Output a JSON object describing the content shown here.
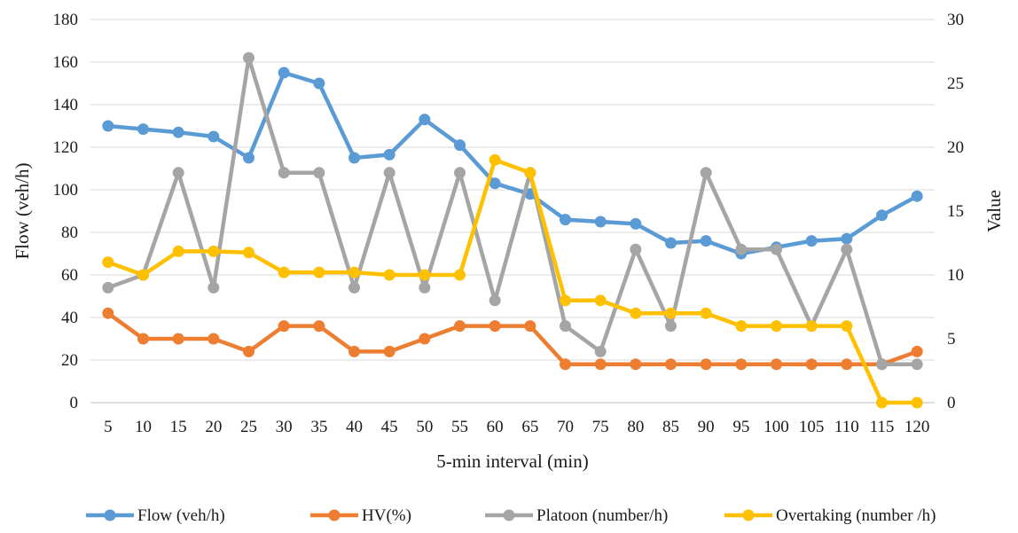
{
  "chart_data": {
    "type": "line",
    "title": "",
    "xlabel": "5-min interval (min)",
    "ylabel": "Flow (veh/h)",
    "y2label": "Value",
    "categories": [
      "5",
      "10",
      "15",
      "20",
      "25",
      "30",
      "35",
      "40",
      "45",
      "50",
      "55",
      "60",
      "65",
      "70",
      "75",
      "80",
      "85",
      "90",
      "95",
      "100",
      "105",
      "110",
      "115",
      "120"
    ],
    "ylim": [
      0,
      180
    ],
    "y2lim": [
      0,
      30
    ],
    "y_ticks": [
      "0",
      "20",
      "40",
      "60",
      "80",
      "100",
      "120",
      "140",
      "160",
      "180"
    ],
    "y2_ticks": [
      "0",
      "5",
      "10",
      "15",
      "20",
      "25",
      "30"
    ],
    "grid": true,
    "legend_position": "bottom",
    "series": [
      {
        "name": "Flow (veh/h)",
        "axis": "left",
        "color": "#5B9BD5",
        "values": [
          130,
          128.5,
          127,
          125,
          115,
          155,
          150,
          115,
          116.5,
          133,
          121,
          103,
          98,
          86,
          85,
          84,
          75,
          76,
          70,
          73,
          76,
          77,
          88,
          97
        ]
      },
      {
        "name": "HV(%)",
        "axis": "right",
        "color": "#ED7D31",
        "values": [
          7,
          5,
          5,
          5,
          4,
          6,
          6,
          4,
          4,
          5,
          6,
          6,
          6,
          3,
          3,
          3,
          3,
          3,
          3,
          3,
          3,
          3,
          3,
          4
        ]
      },
      {
        "name": "Platoon (number/h)",
        "axis": "right",
        "color": "#A5A5A5",
        "values": [
          9,
          10,
          18,
          9,
          27,
          18,
          18,
          9,
          18,
          9,
          18,
          8,
          18,
          6,
          4,
          12,
          6,
          18,
          12,
          12,
          6,
          12,
          3,
          3
        ]
      },
      {
        "name": "Overtaking (number /h)",
        "axis": "right",
        "color": "#FFC000",
        "values": [
          11,
          10,
          11.85,
          11.85,
          11.75,
          10.2,
          10.2,
          10.2,
          10,
          10,
          10,
          19,
          18,
          8,
          8,
          7,
          7,
          7,
          6,
          6,
          6,
          6,
          0,
          0
        ]
      }
    ]
  }
}
